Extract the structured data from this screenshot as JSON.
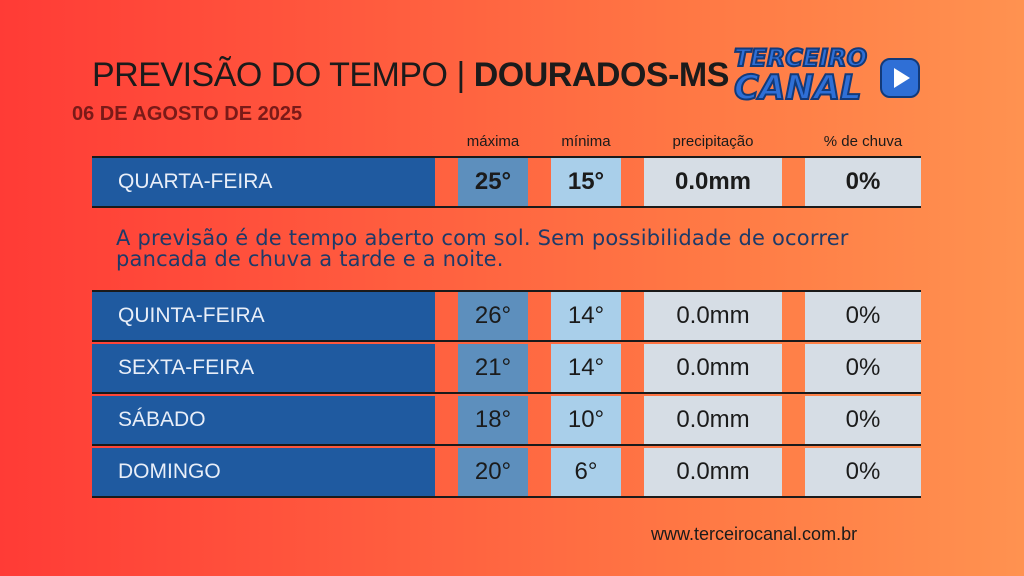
{
  "header": {
    "title_prefix": "PREVISÃO DO TEMPO |",
    "title_city": "DOURADOS-MS",
    "date": "06 DE AGOSTO DE 2025"
  },
  "logo": {
    "line1": "TERCEIRO",
    "line2": "CANAL",
    "icon": "play-icon",
    "color": "#2f6fd6"
  },
  "columns": {
    "max": "máxima",
    "min": "mínima",
    "precip": "precipitação",
    "rain": "% de chuva"
  },
  "today": {
    "day": "QUARTA-FEIRA",
    "max": "25°",
    "min": "15°",
    "precip": "0.0mm",
    "rain": "0%"
  },
  "description": "A previsão é de tempo aberto com sol. Sem possibilidade de ocorrer pancada de chuva a tarde e a noite.",
  "forecast": [
    {
      "day": "QUINTA-FEIRA",
      "max": "26°",
      "min": "14°",
      "precip": "0.0mm",
      "rain": "0%"
    },
    {
      "day": "SEXTA-FEIRA",
      "max": "21°",
      "min": "14°",
      "precip": "0.0mm",
      "rain": "0%"
    },
    {
      "day": "SÁBADO",
      "max": "18°",
      "min": "10°",
      "precip": "0.0mm",
      "rain": "0%"
    },
    {
      "day": "DOMINGO",
      "max": "20°",
      "min": "6°",
      "precip": "0.0mm",
      "rain": "0%"
    }
  ],
  "footer": {
    "website": "www.terceirocanal.com.br"
  }
}
